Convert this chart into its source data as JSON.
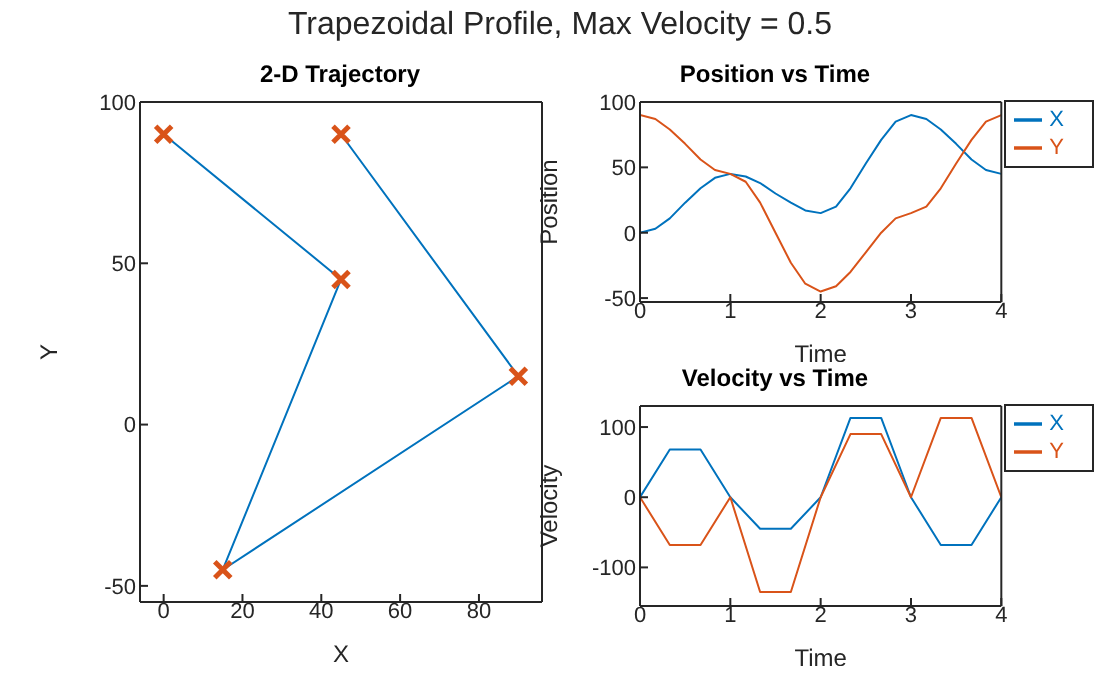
{
  "chart_data": [
    {
      "type": "other",
      "title": "Trapezoidal Profile, Max Velocity = 0.5"
    },
    {
      "type": "line",
      "title": "2-D Trajectory",
      "xlabel": "X",
      "ylabel": "Y",
      "xlim": [
        -6,
        96
      ],
      "xticks": [
        0,
        20,
        40,
        60,
        80
      ],
      "ylim": [
        -55,
        100
      ],
      "yticks": [
        -50,
        0,
        50,
        100
      ],
      "series": [
        {
          "type": "line",
          "color": "#0072bd",
          "marker": "none",
          "x": [
            0,
            45,
            15,
            90,
            45
          ],
          "values": [
            90,
            45,
            -45,
            15,
            90
          ]
        },
        {
          "type": "scatter",
          "color": "#d95319",
          "marker": "cross",
          "x": [
            0,
            45,
            15,
            90,
            45
          ],
          "values": [
            90,
            45,
            -45,
            15,
            90
          ]
        }
      ]
    },
    {
      "type": "line",
      "title": "Position vs Time",
      "xlabel": "Time",
      "ylabel": "Position",
      "xlim": [
        0,
        4
      ],
      "xticks": [
        0,
        1,
        2,
        3,
        4
      ],
      "ylim": [
        -53,
        100
      ],
      "yticks": [
        -50,
        0,
        50,
        100
      ],
      "legend": "right",
      "x": [
        0,
        0.17,
        0.33,
        0.5,
        0.67,
        0.83,
        1,
        1.17,
        1.33,
        1.5,
        1.67,
        1.83,
        2,
        2.17,
        2.33,
        2.5,
        2.67,
        2.83,
        3,
        3.17,
        3.33,
        3.5,
        3.67,
        3.83,
        4
      ],
      "series": [
        {
          "name": "X",
          "color": "#0072bd",
          "values": [
            0,
            3,
            11,
            23,
            34,
            42,
            45,
            43,
            38,
            30,
            23,
            17,
            15,
            20,
            34,
            53,
            71,
            85,
            90,
            87,
            79,
            68,
            56,
            48,
            45
          ]
        },
        {
          "name": "Y",
          "color": "#d95319",
          "values": [
            90,
            87,
            79,
            68,
            56,
            48,
            45,
            39,
            23,
            0,
            -23,
            -39,
            -45,
            -41,
            -30,
            -15,
            0,
            11,
            15,
            20,
            34,
            53,
            71,
            85,
            90
          ]
        }
      ]
    },
    {
      "type": "line",
      "title": "Velocity vs Time",
      "xlabel": "Time",
      "ylabel": "Velocity",
      "xlim": [
        0,
        4
      ],
      "xticks": [
        0,
        1,
        2,
        3,
        4
      ],
      "ylim": [
        -155,
        130
      ],
      "yticks": [
        -100,
        0,
        100
      ],
      "legend": "right",
      "x": [
        0,
        0.33,
        0.67,
        1,
        1.33,
        1.67,
        2,
        2.33,
        2.67,
        3,
        3.33,
        3.67,
        4
      ],
      "series": [
        {
          "name": "X",
          "color": "#0072bd",
          "values": [
            0,
            68,
            68,
            0,
            -45,
            -45,
            0,
            113,
            113,
            0,
            -68,
            -68,
            0
          ]
        },
        {
          "name": "Y",
          "color": "#d95319",
          "values": [
            0,
            -68,
            -68,
            0,
            -135,
            -135,
            0,
            90,
            90,
            0,
            113,
            113,
            0
          ]
        }
      ]
    }
  ]
}
